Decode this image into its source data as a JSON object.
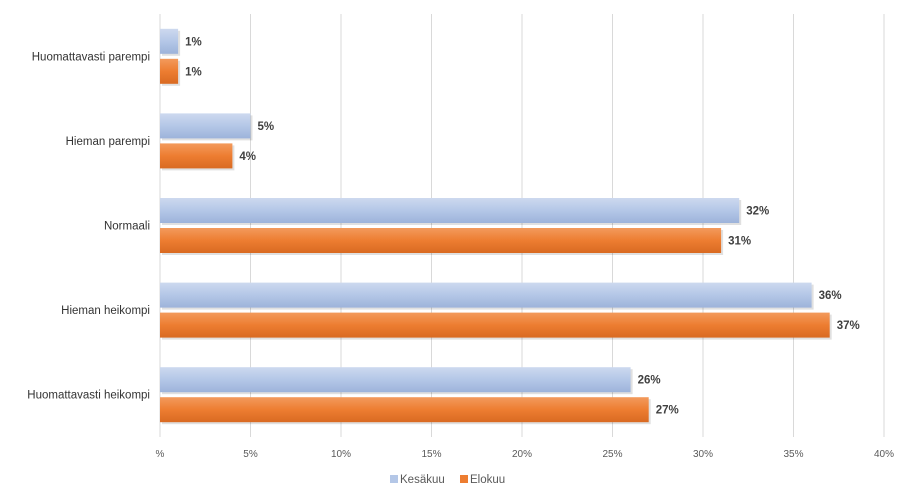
{
  "chart_data": {
    "type": "bar",
    "orientation": "horizontal",
    "categories": [
      "Huomattavasti parempi",
      "Hieman parempi",
      "Normaali",
      "Hieman heikompi",
      "Huomattavasti heikompi"
    ],
    "series": [
      {
        "name": "Kesäkuu",
        "values": [
          1,
          5,
          32,
          36,
          26
        ],
        "labels": [
          "1%",
          "5%",
          "32%",
          "36%",
          "26%"
        ],
        "color": "#b4c7e7"
      },
      {
        "name": "Elokuu",
        "values": [
          1,
          4,
          31,
          37,
          27
        ],
        "labels": [
          "1%",
          "4%",
          "31%",
          "37%",
          "27%"
        ],
        "color": "#ed7d31"
      }
    ],
    "xlim": [
      0,
      40
    ],
    "xticks": [
      0,
      5,
      10,
      15,
      20,
      25,
      30,
      35,
      40
    ],
    "xtick_labels": [
      "%",
      "5%",
      "10%",
      "15%",
      "20%",
      "25%",
      "30%",
      "35%",
      "40%"
    ],
    "grid": true,
    "legend_position": "bottom"
  }
}
